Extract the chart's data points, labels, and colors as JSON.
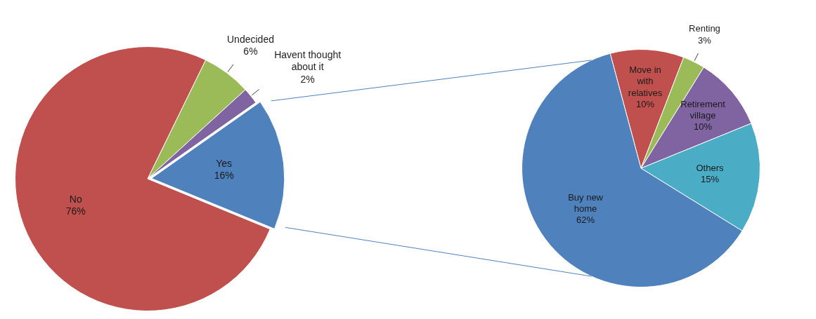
{
  "chart_data": [
    {
      "type": "pie",
      "categories": [
        "Undecided",
        "Havent thought about it",
        "Yes",
        "No"
      ],
      "values": [
        6,
        2,
        16,
        76
      ],
      "colors": [
        "#9bbb59",
        "#8064a2",
        "#4f81bd",
        "#c0504d"
      ],
      "value_labels": [
        "6%",
        "2%",
        "16%",
        "76%"
      ],
      "legend": false
    },
    {
      "type": "pie",
      "categories": [
        "Move in with relatives",
        "Renting",
        "Retirement village",
        "Others",
        "Buy new home"
      ],
      "values": [
        10,
        3,
        10,
        15,
        62
      ],
      "colors": [
        "#c0504d",
        "#9bbb59",
        "#8064a2",
        "#4bacc6",
        "#4f81bd"
      ],
      "value_labels": [
        "10%",
        "3%",
        "10%",
        "15%",
        "62%"
      ],
      "legend": false
    }
  ]
}
